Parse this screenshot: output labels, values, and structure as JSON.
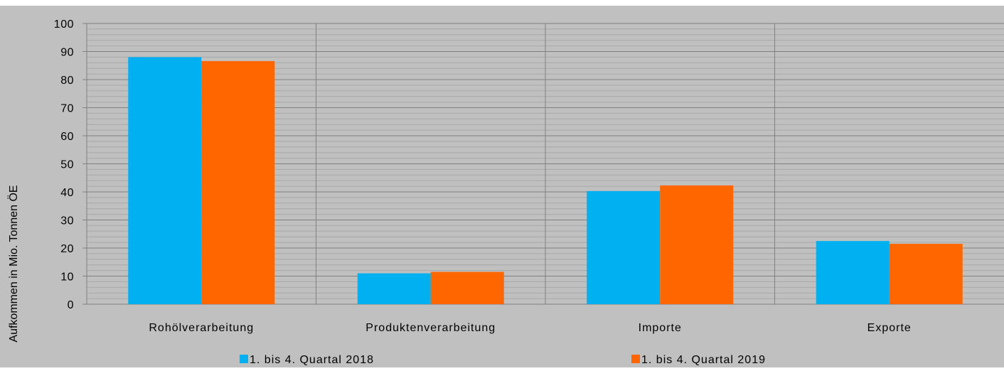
{
  "chart_data": {
    "type": "bar",
    "title": "",
    "xlabel": "",
    "ylabel": "Aufkommen in Mio. Tonnen ÖE",
    "categories": [
      "Rohölverarbeitung",
      "Produktenverarbeitung",
      "Importe",
      "Exporte"
    ],
    "series": [
      {
        "name": "1. bis 4. Quartal 2018",
        "values": [
          88,
          11,
          40.3,
          22.5
        ],
        "color": "#00B0F0"
      },
      {
        "name": "1. bis 4. Quartal 2019",
        "values": [
          86.6,
          11.5,
          42.3,
          21.5
        ],
        "color": "#FF6600"
      }
    ],
    "ylim": [
      0,
      100
    ],
    "yticks": [
      0,
      10,
      20,
      30,
      40,
      50,
      60,
      70,
      80,
      90,
      100
    ],
    "grid": true,
    "legend": "bottom",
    "background": "#C0C0C0",
    "gridline_color": "#808080"
  }
}
